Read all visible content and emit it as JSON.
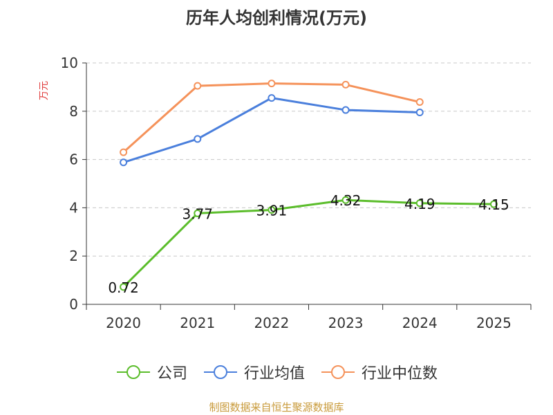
{
  "chart_data": {
    "type": "line",
    "title": "历年人均创利情况(万元)",
    "ylabel": "万元",
    "xlabel": "",
    "categories": [
      "2020",
      "2021",
      "2022",
      "2023",
      "2024",
      "2025"
    ],
    "ylim": [
      0,
      10
    ],
    "yticks": [
      "0",
      "2",
      "4",
      "6",
      "8",
      "10"
    ],
    "grid": true,
    "legend_position": "bottom",
    "series": [
      {
        "name": "公司",
        "color": "#5bbd2b",
        "values": [
          0.72,
          3.77,
          3.91,
          4.32,
          4.19,
          4.15
        ],
        "labels": [
          "0.72",
          "3.77",
          "3.91",
          "4.32",
          "4.19",
          "4.15"
        ]
      },
      {
        "name": "行业均值",
        "color": "#4a7fdc",
        "values": [
          5.88,
          6.85,
          8.55,
          8.05,
          7.95,
          null
        ]
      },
      {
        "name": "行业中位数",
        "color": "#f5925a",
        "values": [
          6.3,
          9.05,
          9.15,
          9.1,
          8.38,
          null
        ]
      }
    ]
  },
  "footer": "制图数据来自恒生聚源数据库"
}
